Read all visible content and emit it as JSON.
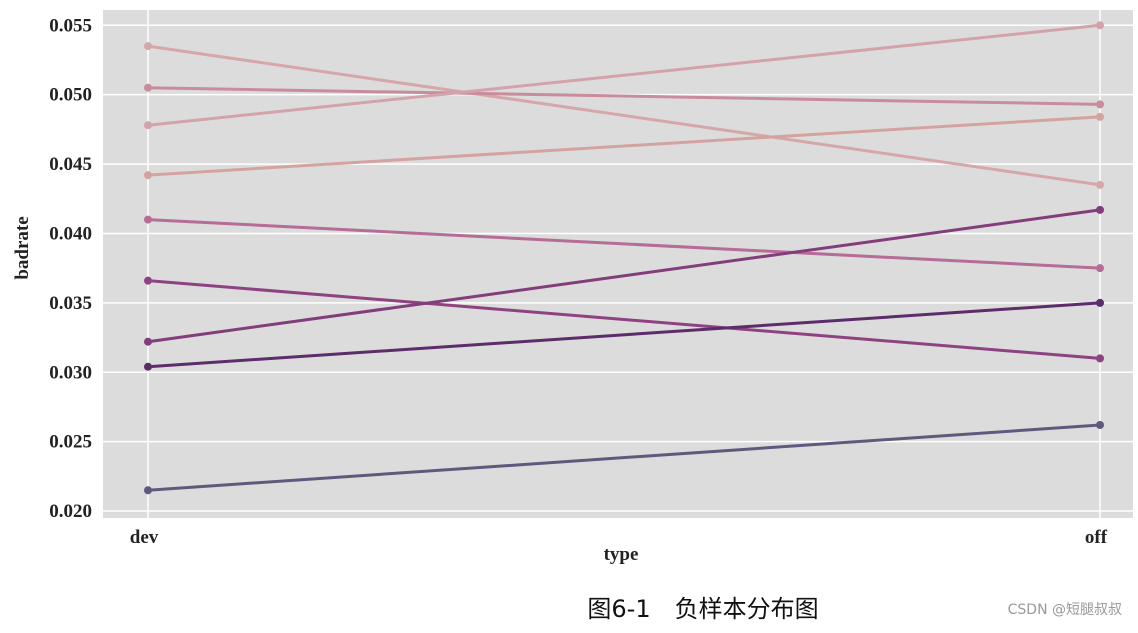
{
  "chart_data": {
    "type": "line",
    "title": "",
    "xlabel": "type",
    "ylabel": "badrate",
    "categories": [
      "dev",
      "off"
    ],
    "ylim": [
      0.0195,
      0.0561
    ],
    "yticks": [
      "0.020",
      "0.025",
      "0.030",
      "0.035",
      "0.040",
      "0.045",
      "0.050",
      "0.055"
    ],
    "grid": true,
    "background": "#dcdcdc",
    "series": [
      {
        "values": [
          0.0535,
          0.0435
        ],
        "color": "#d6a7a9"
      },
      {
        "values": [
          0.0505,
          0.0493
        ],
        "color": "#c98c9c"
      },
      {
        "values": [
          0.0478,
          0.055
        ],
        "color": "#d3a3ac"
      },
      {
        "values": [
          0.0442,
          0.0484
        ],
        "color": "#d3a39f"
      },
      {
        "values": [
          0.041,
          0.0375
        ],
        "color": "#b56c96"
      },
      {
        "values": [
          0.0366,
          0.031
        ],
        "color": "#8f4282"
      },
      {
        "values": [
          0.0322,
          0.0417
        ],
        "color": "#823d7d"
      },
      {
        "values": [
          0.0304,
          0.035
        ],
        "color": "#5d2c6b"
      },
      {
        "values": [
          0.0215,
          0.0262
        ],
        "color": "#5f5a7d"
      }
    ]
  },
  "caption": "图6-1　负样本分布图",
  "watermark": "CSDN @短腿叔叔"
}
